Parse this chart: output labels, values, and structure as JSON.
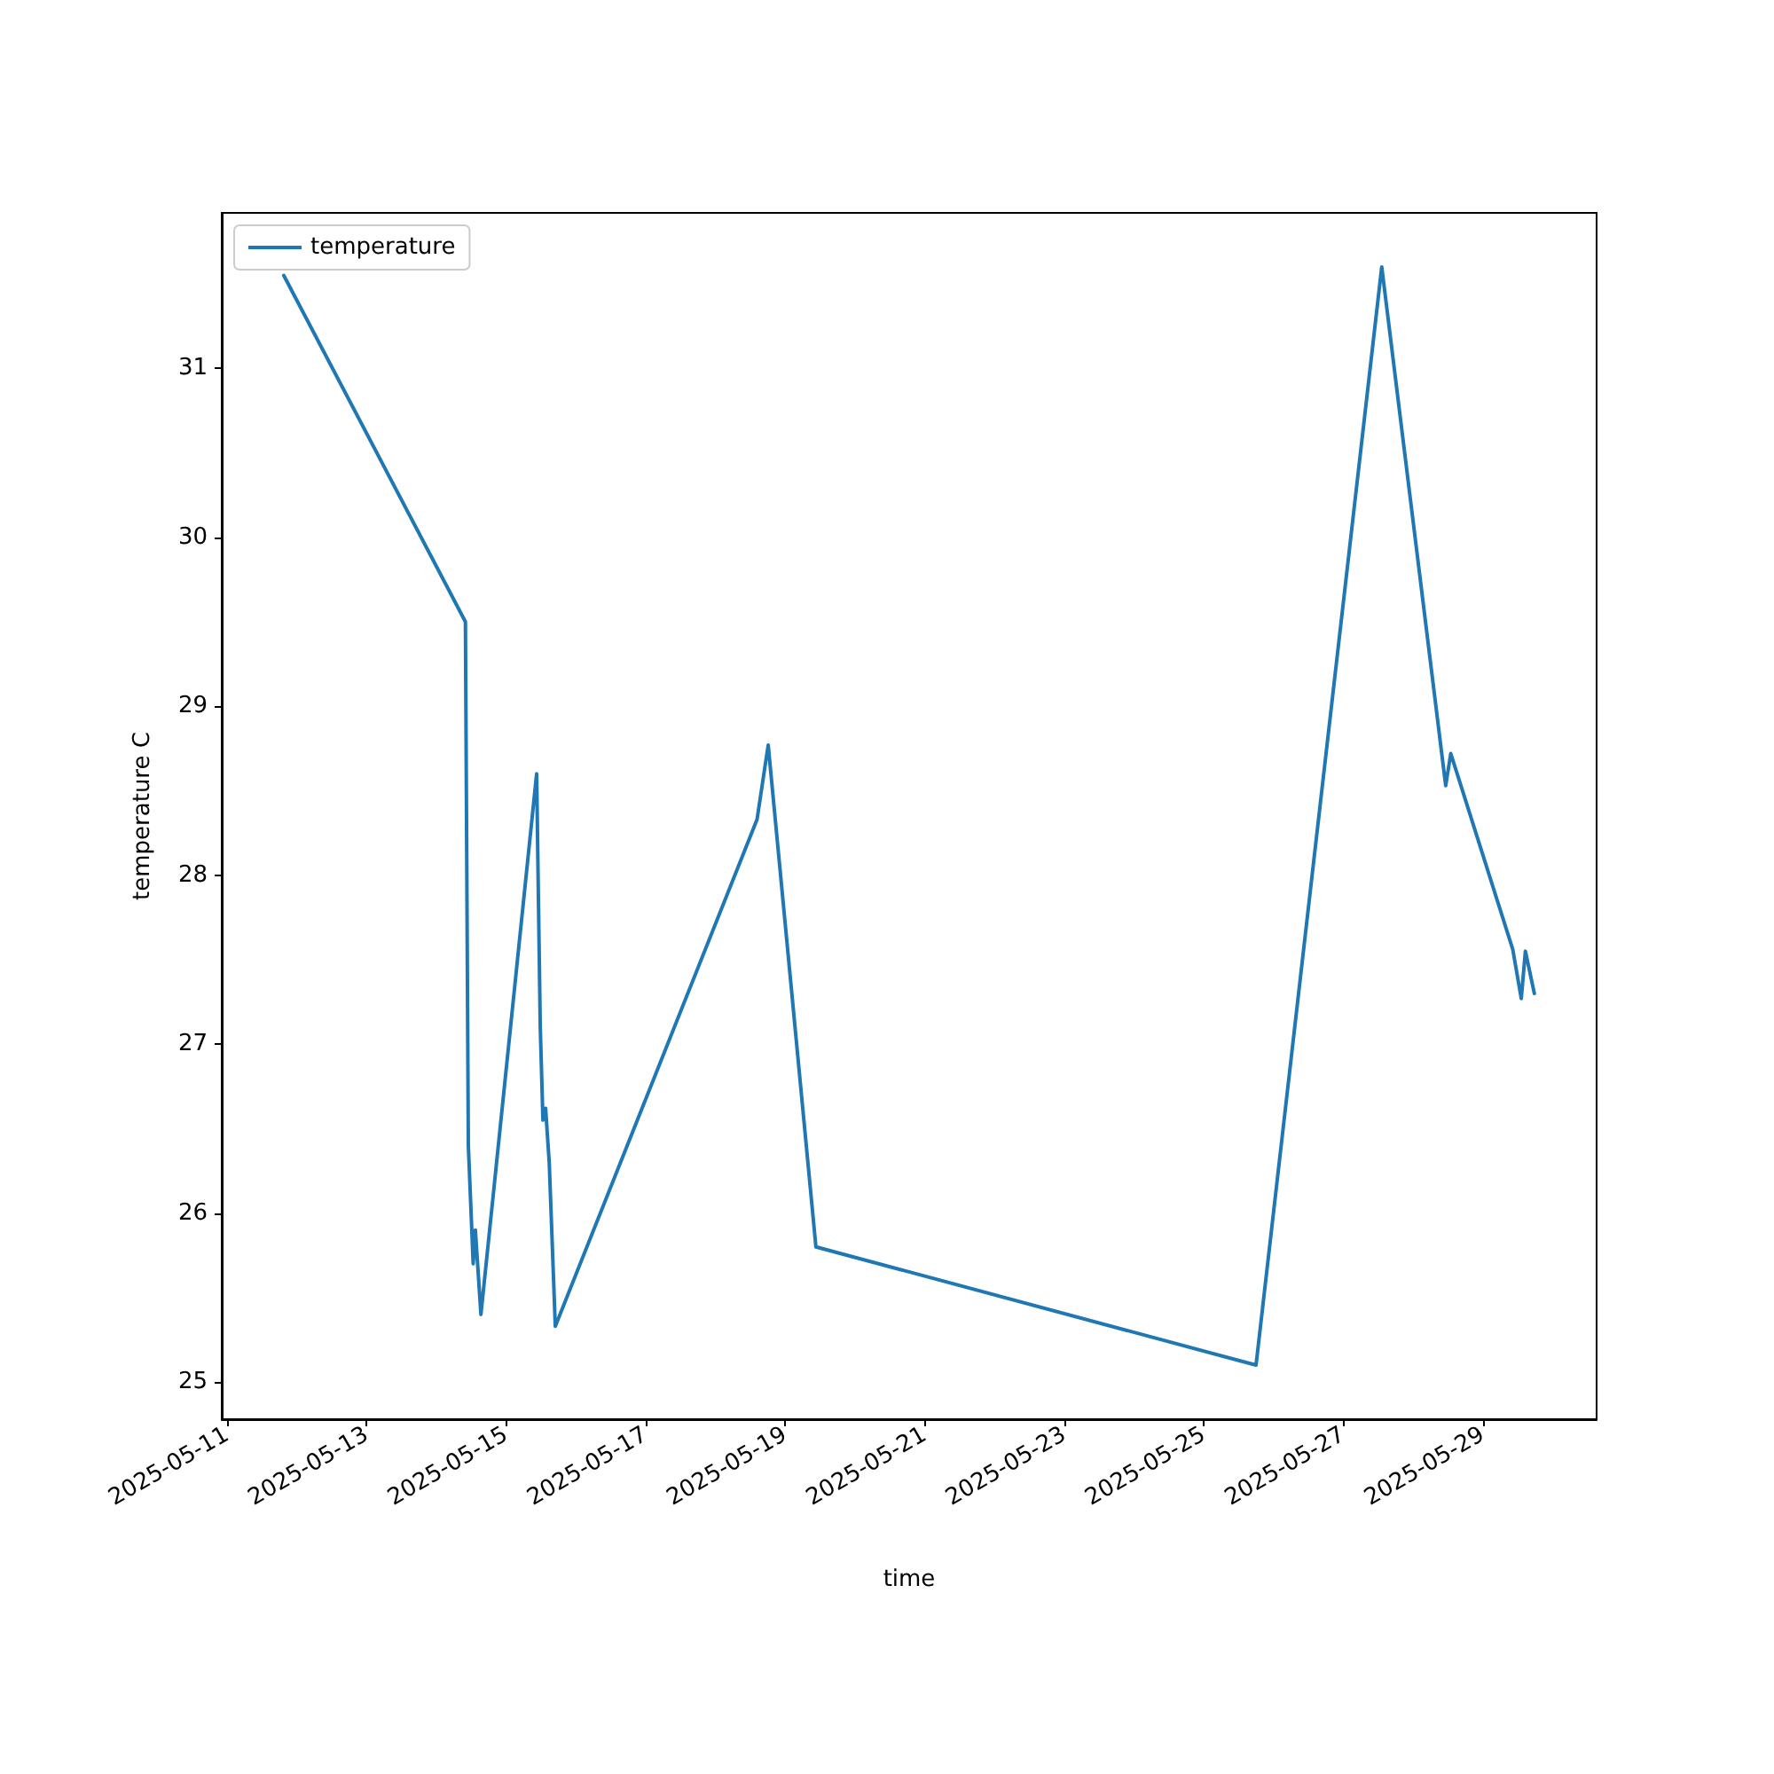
{
  "chart_data": {
    "type": "line",
    "xlabel": "time",
    "ylabel": "temperature C",
    "legend": "top left",
    "grid": false,
    "marker": "none",
    "line_style": "solid",
    "x": [
      "2025-05-11T19:30",
      "2025-05-14T10:00",
      "2025-05-14T11:00",
      "2025-05-14T12:40",
      "2025-05-14T13:25",
      "2025-05-14T15:20",
      "2025-05-15T10:30",
      "2025-05-15T11:45",
      "2025-05-15T12:40",
      "2025-05-15T13:35",
      "2025-05-15T14:50",
      "2025-05-15T16:55",
      "2025-05-18T14:20",
      "2025-05-18T18:10",
      "2025-05-19T10:35",
      "2025-05-25T18:00",
      "2025-05-27T13:15",
      "2025-05-28T11:15",
      "2025-05-28T13:00",
      "2025-05-29T10:20",
      "2025-05-29T13:15",
      "2025-05-29T14:40",
      "2025-05-29T17:45"
    ],
    "series": [
      {
        "name": "temperature",
        "color": "#1f77b4",
        "values": [
          31.55,
          29.5,
          26.4,
          25.7,
          25.9,
          25.4,
          28.6,
          27.1,
          26.55,
          26.62,
          26.3,
          25.33,
          28.33,
          28.77,
          25.8,
          25.1,
          31.6,
          28.53,
          28.72,
          27.56,
          27.27,
          27.55,
          27.3
        ]
      }
    ],
    "xlim": [
      "2025-05-10T22:10",
      "2025-05-30T15:10"
    ],
    "xticks": [
      "2025-05-11",
      "2025-05-13",
      "2025-05-15",
      "2025-05-17",
      "2025-05-19",
      "2025-05-21",
      "2025-05-23",
      "2025-05-25",
      "2025-05-27",
      "2025-05-29"
    ],
    "ylim": [
      24.78,
      31.92
    ],
    "yticks": [
      25,
      26,
      27,
      28,
      29,
      30,
      31
    ]
  }
}
